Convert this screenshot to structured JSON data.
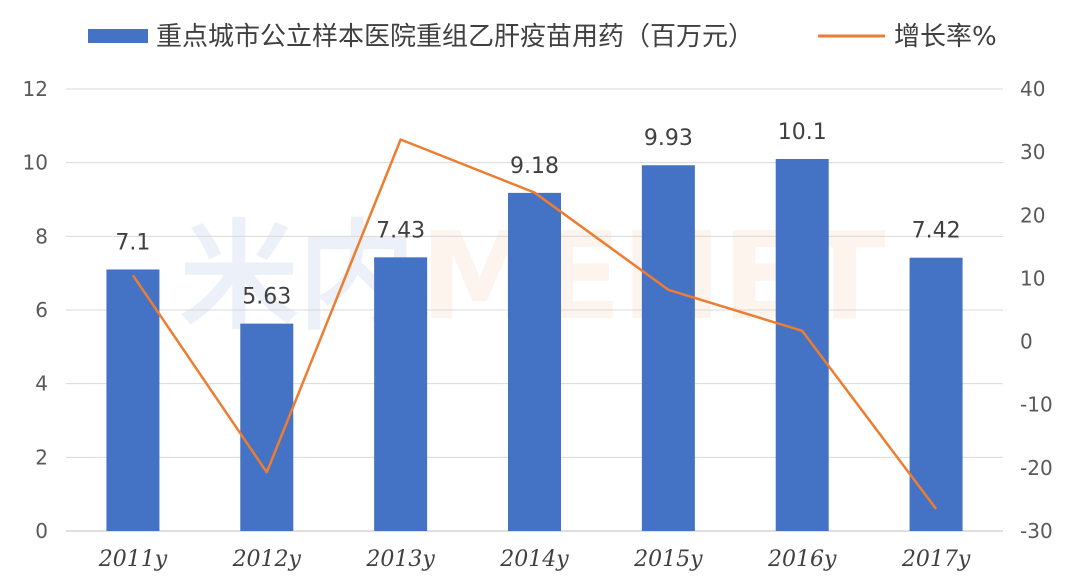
{
  "chart_data": {
    "type": "bar",
    "categories": [
      "2011y",
      "2012y",
      "2013y",
      "2014y",
      "2015y",
      "2016y",
      "2017y"
    ],
    "series": [
      {
        "name": "重点城市公立样本医院重组乙肝疫苗用药（百万元）",
        "type": "bar",
        "axis": "left",
        "color": "#4472C4",
        "values": [
          7.1,
          5.63,
          7.43,
          9.18,
          9.93,
          10.1,
          7.42
        ],
        "data_labels": [
          "7.1",
          "5.63",
          "7.43",
          "9.18",
          "9.93",
          "10.1",
          "7.42"
        ]
      },
      {
        "name": "增长率%",
        "type": "line",
        "axis": "right",
        "color": "#ED7D31",
        "values": [
          10.5,
          -20.7,
          32.0,
          23.6,
          8.2,
          1.7,
          -26.5
        ]
      }
    ],
    "y_left": {
      "ticks": [
        0,
        2,
        4,
        6,
        8,
        10,
        12
      ],
      "ylim": [
        0,
        12
      ]
    },
    "y_right": {
      "ticks": [
        -30,
        -20,
        -10,
        0,
        10,
        20,
        30,
        40
      ],
      "ylim": [
        -30,
        40
      ]
    },
    "grid": true,
    "legend_position": "top"
  },
  "watermark": {
    "chinese": "米内",
    "latin": "MENET"
  }
}
